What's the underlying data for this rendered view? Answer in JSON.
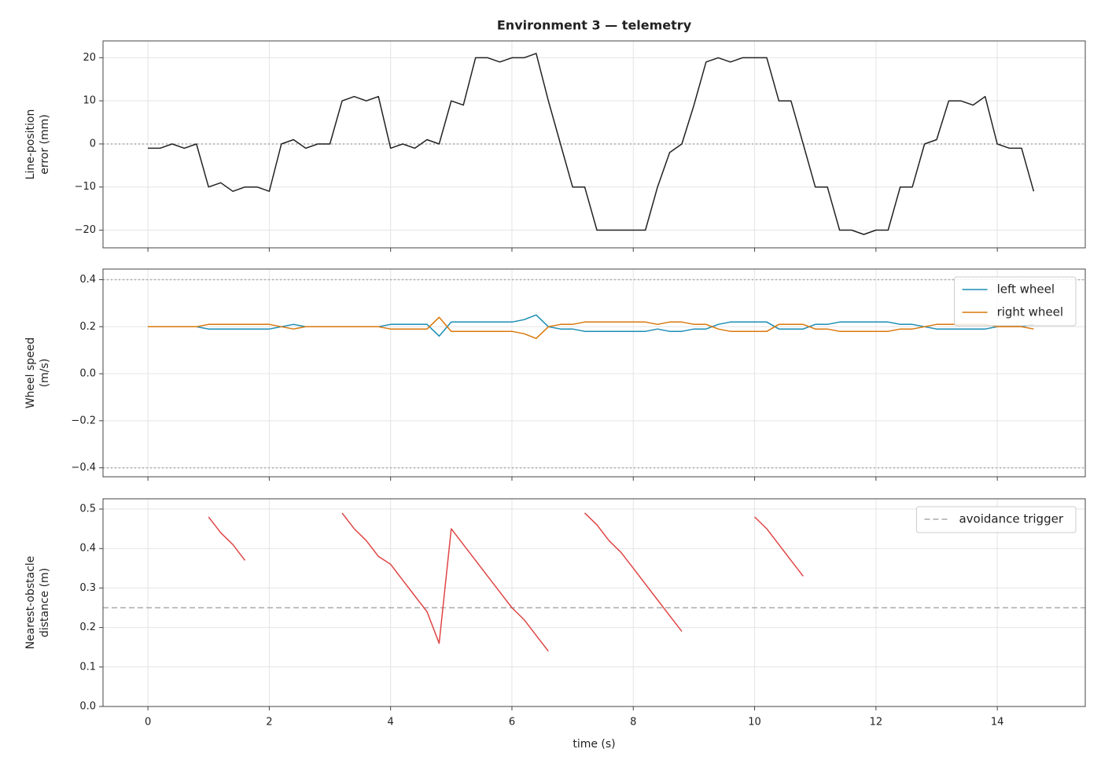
{
  "chart_data": [
    {
      "type": "line",
      "title": "Environment 3 — telemetry",
      "ylabel": [
        "Line-position",
        "error (mm)"
      ],
      "x": [
        0,
        0.2,
        0.4,
        0.6,
        0.8,
        1,
        1.2,
        1.4,
        1.6,
        1.8,
        2,
        2.2,
        2.4,
        2.6,
        2.8,
        3,
        3.2,
        3.4,
        3.6,
        3.8,
        4,
        4.2,
        4.4,
        4.6,
        4.8,
        5,
        5.2,
        5.4,
        5.6,
        5.8,
        6,
        6.2,
        6.4,
        6.6,
        6.8,
        7,
        7.2,
        7.4,
        7.6,
        7.8,
        8,
        8.2,
        8.4,
        8.6,
        8.8,
        9,
        9.2,
        9.4,
        9.6,
        9.8,
        10,
        10.2,
        10.4,
        10.6,
        10.8,
        11,
        11.2,
        11.4,
        11.6,
        11.8,
        12,
        12.2,
        12.4,
        12.6,
        12.8,
        13,
        13.2,
        13.4,
        13.6,
        13.8,
        14,
        14.2,
        14.4,
        14.6
      ],
      "series": [
        {
          "color": "#222222",
          "values": [
            -1,
            -1,
            0,
            -1,
            0,
            -10,
            -9,
            -11,
            -10,
            -10,
            -11,
            0,
            1,
            -1,
            0,
            0,
            10,
            11,
            10,
            11,
            -1,
            0,
            -1,
            1,
            0,
            10,
            9,
            20,
            20,
            19,
            20,
            20,
            21,
            10,
            0,
            -10,
            -10,
            -20,
            -20,
            -20,
            -20,
            -20,
            -10,
            -2,
            0,
            9,
            19,
            20,
            19,
            20,
            20,
            20,
            10,
            10,
            0,
            -10,
            -10,
            -20,
            -20,
            -21,
            -20,
            -20,
            -10,
            -10,
            0,
            1,
            10,
            10,
            9,
            11,
            0,
            -1,
            -1,
            -11
          ]
        }
      ],
      "reference_lines": [
        {
          "value": 0,
          "style": "dotted",
          "color": "#aaaaaa"
        }
      ],
      "xlim": [
        -0.74,
        15.45
      ],
      "xticks": [
        0,
        2,
        4,
        6,
        8,
        10,
        12,
        14
      ],
      "ylim": [
        -24.1,
        23.9
      ],
      "yticks": [
        {
          "value": -20,
          "label": "−20"
        },
        {
          "value": -10,
          "label": "−10"
        },
        0,
        10,
        20
      ],
      "grid": true
    },
    {
      "type": "line",
      "ylabel": [
        "Wheel speed",
        "(m/s)"
      ],
      "legend": "upper right",
      "x": [
        0,
        0.2,
        0.4,
        0.6,
        0.8,
        1,
        1.2,
        1.4,
        1.6,
        1.8,
        2,
        2.2,
        2.4,
        2.6,
        2.8,
        3,
        3.2,
        3.4,
        3.6,
        3.8,
        4,
        4.2,
        4.4,
        4.6,
        4.8,
        5,
        5.2,
        5.4,
        5.6,
        5.8,
        6,
        6.2,
        6.4,
        6.6,
        6.8,
        7,
        7.2,
        7.4,
        7.6,
        7.8,
        8,
        8.2,
        8.4,
        8.6,
        8.8,
        9,
        9.2,
        9.4,
        9.6,
        9.8,
        10,
        10.2,
        10.4,
        10.6,
        10.8,
        11,
        11.2,
        11.4,
        11.6,
        11.8,
        12,
        12.2,
        12.4,
        12.6,
        12.8,
        13,
        13.2,
        13.4,
        13.6,
        13.8,
        14,
        14.2,
        14.4,
        14.6
      ],
      "series": [
        {
          "name": "left wheel",
          "color": "#1a8db3",
          "values": [
            0.2,
            0.2,
            0.2,
            0.2,
            0.2,
            0.19,
            0.19,
            0.19,
            0.19,
            0.19,
            0.19,
            0.2,
            0.21,
            0.2,
            0.2,
            0.2,
            0.2,
            0.2,
            0.2,
            0.2,
            0.21,
            0.21,
            0.21,
            0.21,
            0.16,
            0.22,
            0.22,
            0.22,
            0.22,
            0.22,
            0.22,
            0.23,
            0.25,
            0.2,
            0.19,
            0.19,
            0.18,
            0.18,
            0.18,
            0.18,
            0.18,
            0.18,
            0.19,
            0.18,
            0.18,
            0.19,
            0.19,
            0.21,
            0.22,
            0.22,
            0.22,
            0.22,
            0.19,
            0.19,
            0.19,
            0.21,
            0.21,
            0.22,
            0.22,
            0.22,
            0.22,
            0.22,
            0.21,
            0.21,
            0.2,
            0.19,
            0.19,
            0.19,
            0.19,
            0.19,
            0.2,
            0.2,
            0.2,
            0.21
          ]
        },
        {
          "name": "right wheel",
          "color": "#d9770a",
          "values": [
            0.2,
            0.2,
            0.2,
            0.2,
            0.2,
            0.21,
            0.21,
            0.21,
            0.21,
            0.21,
            0.21,
            0.2,
            0.19,
            0.2,
            0.2,
            0.2,
            0.2,
            0.2,
            0.2,
            0.2,
            0.19,
            0.19,
            0.19,
            0.19,
            0.24,
            0.18,
            0.18,
            0.18,
            0.18,
            0.18,
            0.18,
            0.17,
            0.15,
            0.2,
            0.21,
            0.21,
            0.22,
            0.22,
            0.22,
            0.22,
            0.22,
            0.22,
            0.21,
            0.22,
            0.22,
            0.21,
            0.21,
            0.19,
            0.18,
            0.18,
            0.18,
            0.18,
            0.21,
            0.21,
            0.21,
            0.19,
            0.19,
            0.18,
            0.18,
            0.18,
            0.18,
            0.18,
            0.19,
            0.19,
            0.2,
            0.21,
            0.21,
            0.21,
            0.21,
            0.21,
            0.2,
            0.2,
            0.2,
            0.19
          ]
        }
      ],
      "reference_lines": [
        {
          "value": 0.4,
          "style": "dotted",
          "color": "#aaaaaa"
        },
        {
          "value": -0.4,
          "style": "dotted",
          "color": "#aaaaaa"
        }
      ],
      "xlim": [
        -0.74,
        15.45
      ],
      "xticks": [
        0,
        2,
        4,
        6,
        8,
        10,
        12,
        14
      ],
      "ylim": [
        -0.438,
        0.445
      ],
      "yticks": [
        {
          "value": -0.4,
          "label": "−0.4"
        },
        {
          "value": -0.2,
          "label": "−0.2"
        },
        {
          "value": 0,
          "label": "0.0"
        },
        0.2,
        0.4
      ],
      "grid": true
    },
    {
      "type": "line",
      "ylabel": [
        "Nearest-obstacle",
        "distance (m)"
      ],
      "xlabel": "time (s)",
      "legend": "upper right",
      "x": [
        0,
        0.2,
        0.4,
        0.6,
        0.8,
        1,
        1.2,
        1.4,
        1.6,
        1.8,
        2,
        2.2,
        2.4,
        2.6,
        2.8,
        3,
        3.2,
        3.4,
        3.6,
        3.8,
        4,
        4.2,
        4.4,
        4.6,
        4.8,
        5,
        5.2,
        5.4,
        5.6,
        5.8,
        6,
        6.2,
        6.4,
        6.6,
        6.8,
        7,
        7.2,
        7.4,
        7.6,
        7.8,
        8,
        8.2,
        8.4,
        8.6,
        8.8,
        9,
        9.2,
        9.4,
        9.6,
        9.8,
        10,
        10.2,
        10.4,
        10.6,
        10.8,
        11,
        11.2,
        11.4,
        11.6,
        11.8,
        12,
        12.2,
        12.4,
        12.6,
        12.8,
        13,
        13.2,
        13.4,
        13.6,
        13.8,
        14,
        14.2,
        14.4,
        14.6
      ],
      "series": [
        {
          "color": "#e04545",
          "values": [
            null,
            null,
            null,
            null,
            null,
            0.48,
            0.44,
            0.41,
            0.37,
            null,
            null,
            null,
            null,
            null,
            null,
            null,
            0.49,
            0.45,
            0.42,
            0.38,
            0.36,
            0.32,
            0.28,
            0.24,
            0.16,
            0.45,
            0.41,
            0.37,
            0.33,
            0.29,
            0.25,
            0.22,
            0.18,
            0.14,
            null,
            null,
            0.49,
            0.46,
            0.42,
            0.39,
            0.35,
            0.31,
            0.27,
            0.23,
            0.19,
            null,
            null,
            null,
            null,
            null,
            0.48,
            0.45,
            0.41,
            0.37,
            0.33,
            null,
            null,
            null,
            null,
            null,
            null,
            null,
            null,
            null,
            null,
            null,
            null,
            null,
            null,
            null,
            null,
            null,
            null,
            null
          ]
        }
      ],
      "reference_lines": [
        {
          "value": 0.25,
          "name": "avoidance trigger",
          "style": "dashed",
          "color": "#aaaaaa"
        }
      ],
      "xlim": [
        -0.74,
        15.45
      ],
      "xticks": [
        0,
        2,
        4,
        6,
        8,
        10,
        12,
        14
      ],
      "ylim": [
        0,
        0.526
      ],
      "yticks": [
        {
          "value": 0,
          "label": "0.0"
        },
        0.1,
        0.2,
        0.3,
        0.4,
        0.5
      ],
      "grid": true
    }
  ]
}
